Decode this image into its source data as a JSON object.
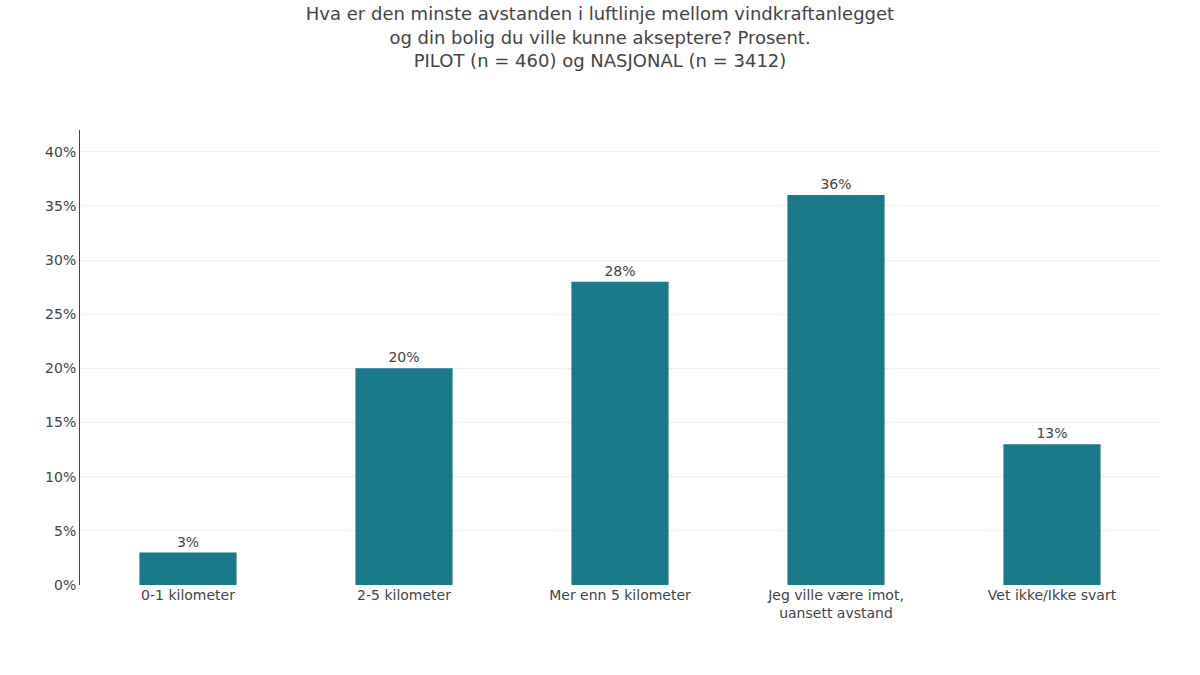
{
  "chart_data": {
    "type": "bar",
    "title": "Hva er den minste avstanden i luftlinje mellom vindkraftanlegget\nog din bolig du ville kunne akseptere? Prosent.\nPILOT (n = 460) og NASJONAL (n = 3412)",
    "categories": [
      "0-1 kilometer",
      "2-5 kilometer",
      "Mer enn 5 kilometer",
      "Jeg ville være imot,\nuansett avstand",
      "Vet ikke/Ikke svart"
    ],
    "values": [
      3,
      20,
      28,
      36,
      13
    ],
    "value_labels": [
      "3%",
      "20%",
      "28%",
      "36%",
      "13%"
    ],
    "data_labels": true,
    "color": "#1a7a8a",
    "ylim": [
      0,
      42
    ],
    "yticks": [
      {
        "value": 0,
        "label": "0%"
      },
      {
        "value": 5,
        "label": "5%"
      },
      {
        "value": 10,
        "label": "10%"
      },
      {
        "value": 15,
        "label": "15%"
      },
      {
        "value": 20,
        "label": "20%"
      },
      {
        "value": 25,
        "label": "25%"
      },
      {
        "value": 30,
        "label": "30%"
      },
      {
        "value": 35,
        "label": "35%"
      },
      {
        "value": 40,
        "label": "40%"
      }
    ],
    "grid": true
  }
}
